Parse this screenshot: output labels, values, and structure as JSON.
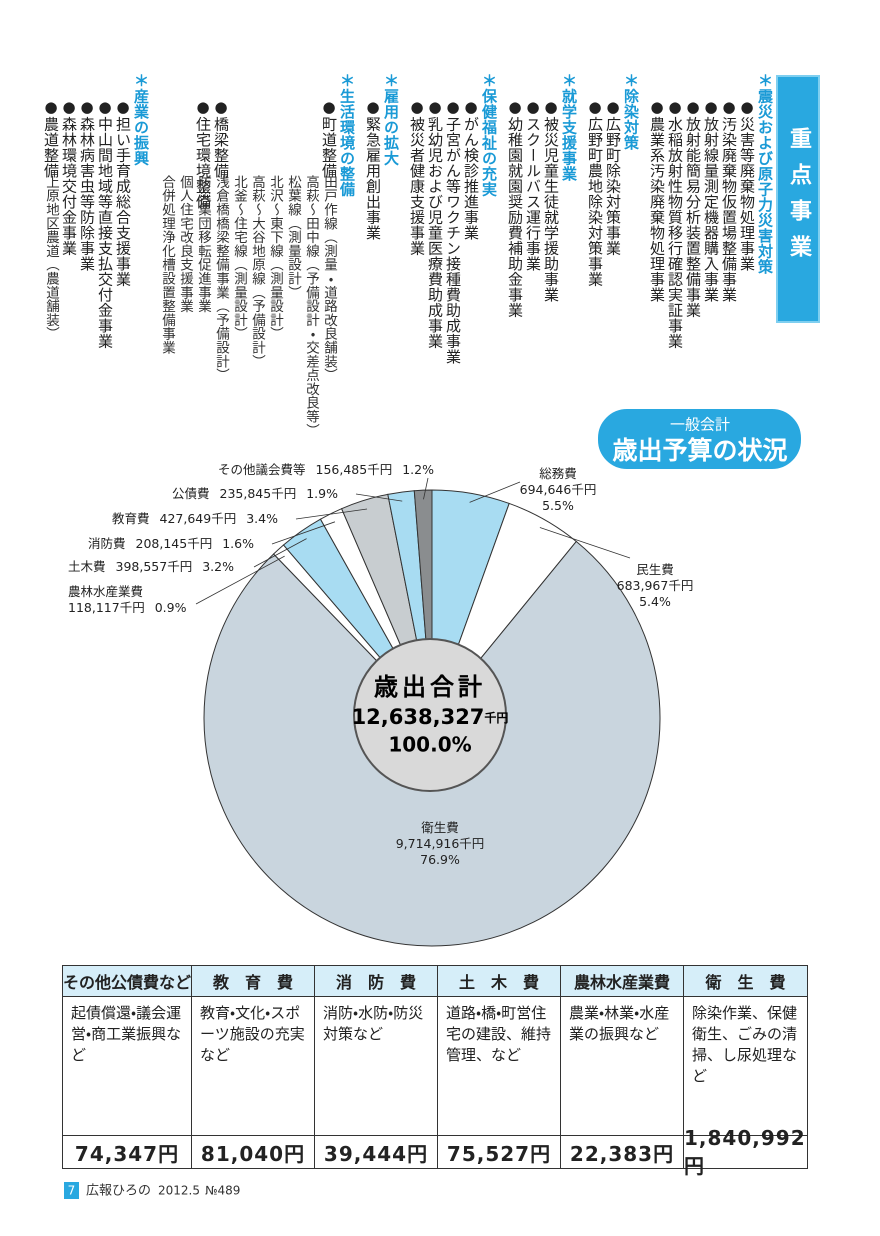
{
  "header": {
    "title": "重点事業"
  },
  "priority": {
    "groups": [
      {
        "heading": "＊震災および原子力災害対策",
        "items": [
          {
            "label": "●災害等廃棄物処理事業"
          },
          {
            "label": "●汚染廃棄物仮置場整備事業"
          },
          {
            "label": "●放射線量測定機器購入事業"
          },
          {
            "label": "●放射能簡易分析装置整備事業"
          },
          {
            "label": "●水稲放射性物質移行確認実証事業"
          },
          {
            "label": "●農業系汚染廃棄物処理事業"
          }
        ]
      },
      {
        "heading": "＊除染対策",
        "items": [
          {
            "label": "●広野町除染対策事業"
          },
          {
            "label": "●広野町農地除染対策事業"
          }
        ]
      },
      {
        "heading": "＊就学支援事業",
        "items": [
          {
            "label": "●被災児童生徒就学援助事業"
          },
          {
            "label": "●スクールバス運行事業"
          },
          {
            "label": "●幼稚園就園奨励費補助金事業"
          }
        ]
      },
      {
        "heading": "＊保健福祉の充実",
        "items": [
          {
            "label": "●がん検診推進事業"
          },
          {
            "label": "●子宮がん等ワクチン接種費助成事業"
          },
          {
            "label": "●乳幼児および児童医療費助成事業"
          },
          {
            "label": "●被災者健康支援事業"
          }
        ]
      },
      {
        "heading": "＊雇用の拡大",
        "items": [
          {
            "label": "●緊急雇用創出事業"
          }
        ]
      },
      {
        "heading": "＊生活環境の整備",
        "items": [
          {
            "label": "●町道整備",
            "details": [
              "田戸作線（測量・道路改良舗装）",
              "高萩～田中線（予備設計・交差点改良等）",
              "松葉線（測量設計）",
              "北沢～東下線（測量設計）",
              "高萩～大谷地原線（予備設計）",
              "北釜～住宅線（測量設計）"
            ]
          },
          {
            "label": "●橋梁整備",
            "details": [
              "浅倉橋橋梁整備事業（予備設計）"
            ]
          },
          {
            "label": "●住宅環境整備",
            "details": [
              "防災集団移転促進事業",
              "個人住宅改良支援事業",
              "合併処理浄化槽設置整備事業"
            ]
          }
        ]
      },
      {
        "heading": "＊産業の振興",
        "items": [
          {
            "label": "●担い手育成総合支援事業"
          },
          {
            "label": "●中山間地域等直接支払交付金事業"
          },
          {
            "label": "●森林病害虫等防除事業"
          },
          {
            "label": "●森林環境交付金事業"
          },
          {
            "label": "●農道整備",
            "details": [
              "上原地区農道（農道舗装）"
            ]
          }
        ]
      }
    ]
  },
  "chart_data": {
    "type": "pie",
    "subtitle": "一般会計",
    "title": "歳出予算の状況",
    "categories": [
      "総務費",
      "民生費",
      "衛生費",
      "農林水産業費",
      "土木費",
      "消防費",
      "教育費",
      "公債費",
      "その他議会費等"
    ],
    "values": [
      694646,
      683967,
      9714916,
      118117,
      398557,
      208145,
      427649,
      235845,
      156485
    ],
    "value_labels": [
      "694,646千円",
      "683,967千円",
      "9,714,916千円",
      "118,117千円",
      "398,557千円",
      "208,145千円",
      "427,649千円",
      "235,845千円",
      "156,485千円"
    ],
    "percent_labels": [
      "5.5%",
      "5.4%",
      "76.9%",
      "0.9%",
      "3.2%",
      "1.6%",
      "3.4%",
      "1.9%",
      "1.2%"
    ],
    "colors": [
      "#a8dcf2",
      "#ffffff",
      "#c9d5de",
      "#ffffff",
      "#a8dcf2",
      "#ffffff",
      "#c8cdd0",
      "#a8dcf2",
      "#8a8d8f"
    ],
    "center": {
      "title": "歳出合計",
      "total": "12,638,327",
      "unit": "千円",
      "percent": "100.0%"
    }
  },
  "table": {
    "headers": [
      "その他公債費など",
      "教　育　費",
      "消　防　費",
      "土　木　費",
      "農林水産業費",
      "衛　生　費"
    ],
    "descriptions": [
      "起債償還・議会運営・商工業振興など",
      "教育・文化・スポーツ施設の充実など",
      "消防・水防・防災対策など",
      "道路・橋・町営住宅の建設、維持管理、など",
      "農業・林業・水産業の振興など",
      "除染作業、保健衛生、ごみの清掃、し尿処理など"
    ],
    "amounts": [
      "74,347円",
      "81,040円",
      "39,444円",
      "75,527円",
      "22,383円",
      "1,840,992円"
    ]
  },
  "footer": {
    "page": "7",
    "publication": "広報ひろの",
    "issue": "2012.5",
    "number": "№489"
  }
}
